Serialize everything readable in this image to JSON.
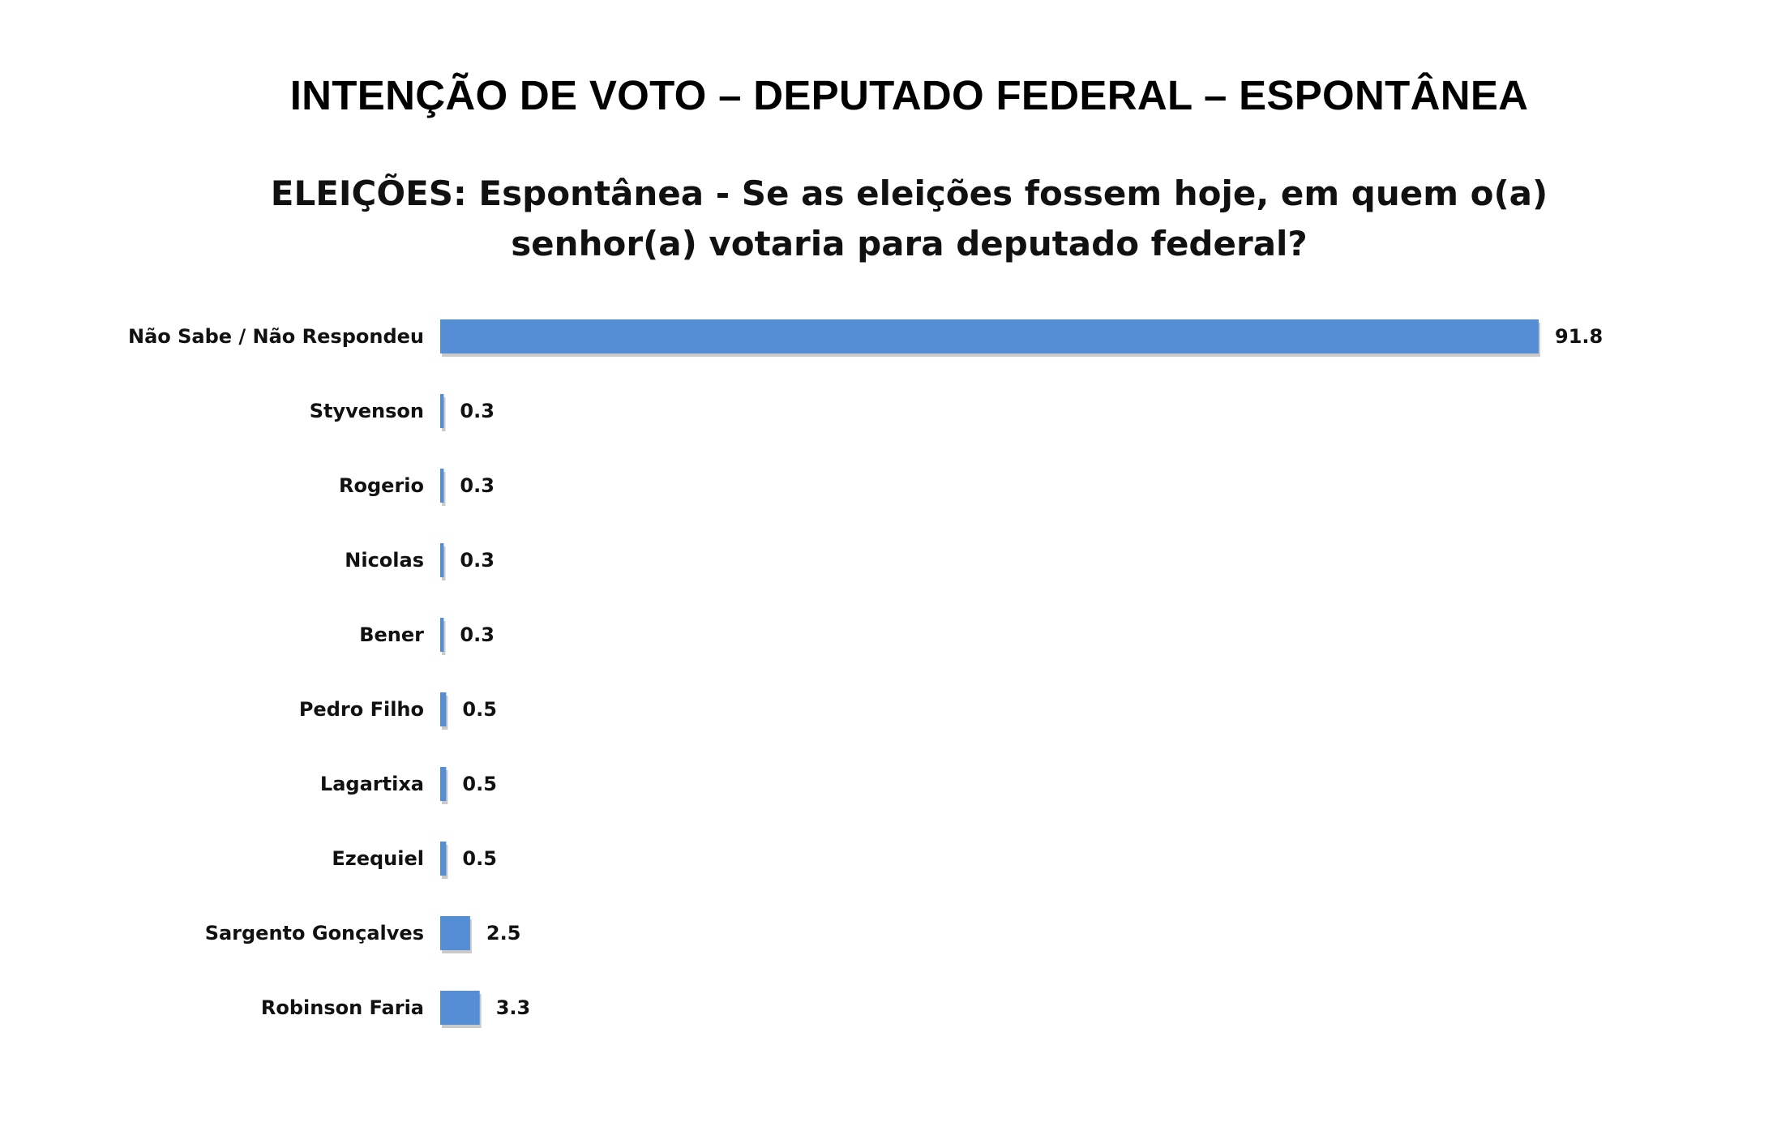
{
  "page": {
    "title": "INTENÇÃO DE VOTO – DEPUTADO FEDERAL – ESPONTÂNEA"
  },
  "chart_data": {
    "type": "bar",
    "orientation": "horizontal",
    "title": "ELEIÇÕES: Espontânea - Se as eleições fossem hoje, em quem o(a) senhor(a) votaria para deputado federal?",
    "title_lines": [
      "ELEIÇÕES: Espontânea - Se as eleições fossem hoje, em quem o(a)",
      "senhor(a) votaria para deputado federal?"
    ],
    "categories": [
      "Não Sabe / Não Respondeu",
      "Styvenson",
      "Rogerio",
      "Nicolas",
      "Bener",
      "Pedro Filho",
      "Lagartixa",
      "Ezequiel",
      "Sargento Gonçalves",
      "Robinson Faria"
    ],
    "values": [
      91.8,
      0.3,
      0.3,
      0.3,
      0.3,
      0.5,
      0.5,
      0.5,
      2.5,
      3.3
    ],
    "value_labels": [
      "91.8",
      "0.3",
      "0.3",
      "0.3",
      "0.3",
      "0.5",
      "0.5",
      "0.5",
      "2.5",
      "3.3"
    ],
    "xlim": [
      0,
      91.8
    ],
    "grid": false,
    "legend": "none",
    "bar_color": "#558ED5",
    "bar_shadow_color": "#9E9E9E"
  }
}
